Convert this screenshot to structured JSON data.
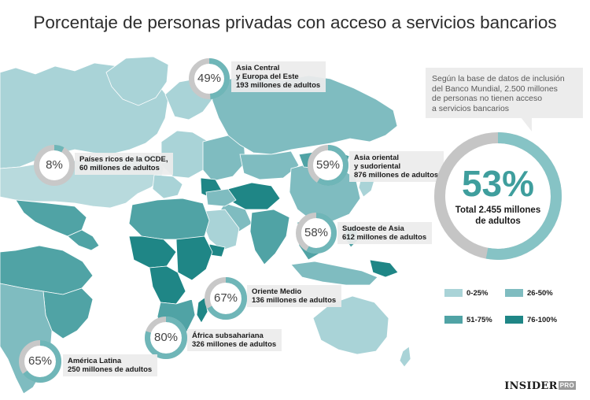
{
  "title": "Porcentaje de personas privadas con acceso a servicios bancarios",
  "note": {
    "lines": [
      "Según la base de datos de inclusión",
      "del Banco Mundial, 2.500 millones",
      "de personas no tienen acceso",
      "a servicios bancarios"
    ]
  },
  "total": {
    "percent": 53,
    "percent_label": "53%",
    "lines": [
      "Total 2.455 millones",
      "de adultos"
    ]
  },
  "regions": [
    {
      "id": "asia-central",
      "percent": 49,
      "percent_label": "49%",
      "lines": [
        "Asia Central",
        "y Europa del Este",
        "193 millones de adultos"
      ]
    },
    {
      "id": "oecd",
      "percent": 8,
      "percent_label": "8%",
      "lines": [
        "Países ricos de la OCDE,",
        "60 millones de adultos"
      ]
    },
    {
      "id": "east-asia",
      "percent": 59,
      "percent_label": "59%",
      "lines": [
        "Asia oriental",
        "y sudoriental",
        "876 millones de adultos"
      ]
    },
    {
      "id": "south-asia",
      "percent": 58,
      "percent_label": "58%",
      "lines": [
        "Sudoeste de Asia",
        "612 millones de adultos"
      ]
    },
    {
      "id": "middle-east",
      "percent": 67,
      "percent_label": "67%",
      "lines": [
        "Oriente Medio",
        "136 millones de adultos"
      ]
    },
    {
      "id": "africa",
      "percent": 80,
      "percent_label": "80%",
      "lines": [
        "África subsahariana",
        "326 millones de adultos"
      ]
    },
    {
      "id": "latam",
      "percent": 65,
      "percent_label": "65%",
      "lines": [
        "América Latina",
        "250 millones de adultos"
      ]
    }
  ],
  "legend": [
    {
      "label": "0-25%",
      "color": "#a9d3d7"
    },
    {
      "label": "26-50%",
      "color": "#7fbcc0"
    },
    {
      "label": "51-75%",
      "color": "#50a3a5"
    },
    {
      "label": "76-100%",
      "color": "#1f8686"
    }
  ],
  "colors": {
    "ring_fill": "#6fb6b8",
    "ring_rest": "#c8c8c8",
    "big_ring_fill": "#86c3c5",
    "big_ring_rest": "#c5c5c5"
  },
  "brand": {
    "name": "INSIDER",
    "suffix": "PRO"
  }
}
